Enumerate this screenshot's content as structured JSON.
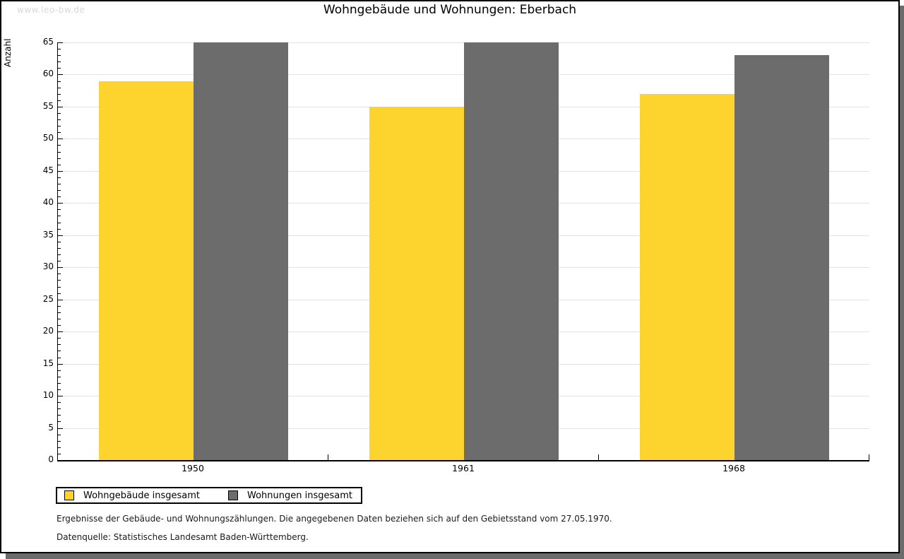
{
  "watermark": "www.leo-bw.de",
  "header": {
    "title": "Wohngebäude und Wohnungen: Eberbach"
  },
  "chart_data": {
    "type": "bar",
    "categories": [
      "1950",
      "1961",
      "1968"
    ],
    "series": [
      {
        "name": "Wohngebäude insgesamt",
        "values": [
          59,
          55,
          57
        ],
        "color": "#fcd42d"
      },
      {
        "name": "Wohnungen insgesamt",
        "values": [
          65,
          65,
          63
        ],
        "color": "#6c6c6c"
      }
    ],
    "title": "Wohngebäude und Wohnungen: Eberbach",
    "xlabel": "",
    "ylabel": "Anzahl",
    "ylim": [
      0,
      65
    ],
    "y_major_step": 5,
    "y_minor_step": 1,
    "grid": true,
    "legend_position": "bottom-left",
    "colors": {
      "grid": "#e3e3e3",
      "axis": "#000000",
      "watermark": "#d8d8d8",
      "shadow": "#6b6b6b"
    }
  },
  "footer": {
    "line1": "Ergebnisse der Gebäude- und Wohnungszählungen. Die angegebenen Daten beziehen sich auf den Gebietsstand vom 27.05.1970.",
    "line2": "Datenquelle: Statistisches Landesamt Baden-Württemberg."
  }
}
